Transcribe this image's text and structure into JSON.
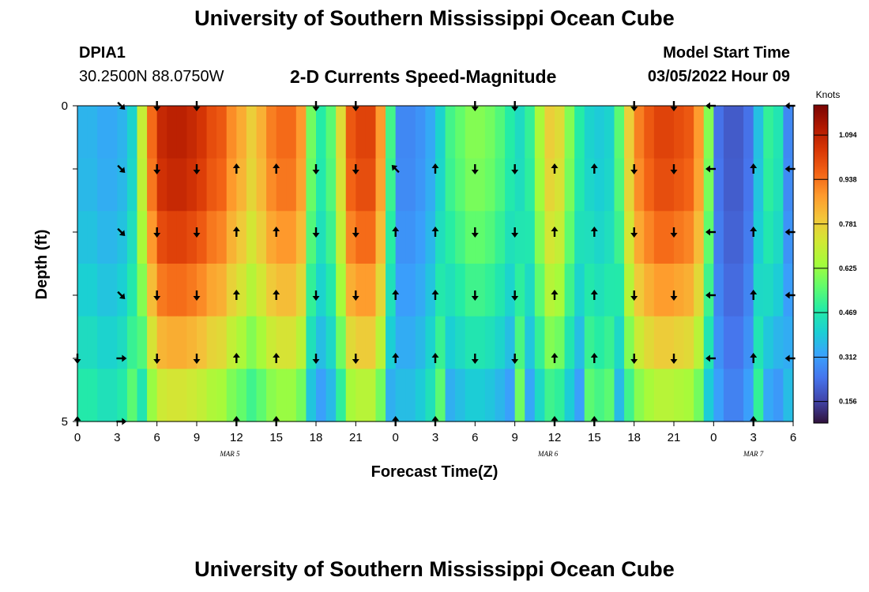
{
  "page": {
    "title_top": "University of Southern Mississippi Ocean Cube",
    "title_bottom": "University of Southern Mississippi Ocean Cube"
  },
  "header": {
    "station_id": "DPIA1",
    "station_coords": "30.2500N  88.0750W",
    "subtitle": "2-D Currents Speed-Magnitude",
    "model_label": "Model Start Time",
    "model_time": "03/05/2022 Hour 09"
  },
  "colors": {
    "ramp": [
      "#30123b",
      "#4145ab",
      "#4675ed",
      "#39a2fc",
      "#1bcfd4",
      "#24eca6",
      "#61fc6c",
      "#a4fc3b",
      "#d1e834",
      "#f3c63a",
      "#fe9b2d",
      "#f36315",
      "#d93806",
      "#b11901",
      "#7a0403"
    ],
    "arrow": "#000000",
    "frame": "#000000"
  },
  "chart_data": {
    "type": "heatmap",
    "title": "2-D Currents Speed-Magnitude",
    "xlabel": "Forecast Time(Z)",
    "ylabel": "Depth (ft)",
    "x_hours": [
      0,
      0.75,
      1.5,
      2.25,
      3,
      3.75,
      4.5,
      5.25,
      6,
      6.75,
      7.5,
      8.25,
      9,
      9.75,
      10.5,
      11.25,
      12,
      12.75,
      13.5,
      14.25,
      15,
      15.75,
      16.5,
      17.25,
      18,
      18.75,
      19.5,
      20.25,
      21,
      21.75,
      22.5,
      23.25,
      24,
      24.75,
      25.5,
      26.25,
      27,
      27.75,
      28.5,
      29.25,
      30,
      30.75,
      31.5,
      32.25,
      33,
      33.75,
      34.5,
      35.25,
      36,
      36.75,
      37.5,
      38.25,
      39,
      39.75,
      40.5,
      41.25,
      42,
      42.75,
      43.5,
      44.25,
      45,
      45.75,
      46.5,
      47.25,
      48,
      48.75,
      49.5,
      50.25,
      51,
      51.75,
      52.5,
      53.25
    ],
    "speed_knots": [
      0.36,
      0.36,
      0.34,
      0.34,
      0.36,
      0.42,
      0.7,
      0.95,
      1.08,
      1.1,
      1.1,
      1.08,
      1.05,
      1.0,
      0.98,
      0.9,
      0.85,
      0.78,
      0.84,
      0.92,
      0.95,
      0.95,
      0.88,
      0.58,
      0.48,
      0.55,
      0.75,
      0.98,
      1.02,
      1.02,
      0.88,
      0.52,
      0.28,
      0.28,
      0.3,
      0.34,
      0.42,
      0.52,
      0.56,
      0.6,
      0.6,
      0.58,
      0.54,
      0.48,
      0.44,
      0.5,
      0.65,
      0.78,
      0.75,
      0.6,
      0.48,
      0.42,
      0.4,
      0.42,
      0.55,
      0.78,
      0.92,
      0.98,
      1.02,
      1.02,
      1.0,
      0.98,
      0.88,
      0.6,
      0.24,
      0.2,
      0.2,
      0.24,
      0.38,
      0.5,
      0.46,
      0.28
    ],
    "depth_factor": [
      1.0,
      0.98,
      0.93,
      0.86,
      0.77,
      0.66
    ],
    "depth_range": [
      0,
      5
    ],
    "depth_ticks": [
      "0",
      "5"
    ],
    "x_ticks": [
      "0",
      "3",
      "6",
      "9",
      "12",
      "15",
      "18",
      "21",
      "0",
      "3",
      "6",
      "9",
      "12",
      "15",
      "18",
      "21",
      "0",
      "3",
      "6"
    ],
    "x_tick_hours": [
      0,
      3,
      6,
      9,
      12,
      15,
      18,
      21,
      24,
      27,
      30,
      33,
      36,
      39,
      42,
      45,
      48,
      51,
      54
    ],
    "x_range_hours": [
      0,
      54
    ],
    "date_labels": [
      {
        "text": "MAR 5",
        "hour": 11.5
      },
      {
        "text": "MAR 6",
        "hour": 35.5
      },
      {
        "text": "MAR 7",
        "hour": 51
      }
    ],
    "arrow_levels": [
      0,
      1,
      2,
      3,
      4,
      5
    ],
    "arrows": [
      {
        "hour": 0,
        "dir": [
          "",
          "",
          "",
          "",
          "S",
          "N"
        ]
      },
      {
        "hour": 3.3,
        "dir": [
          "SE",
          "SE",
          "SE",
          "SE",
          "E",
          "E"
        ]
      },
      {
        "hour": 6,
        "dir": [
          "S",
          "S",
          "S",
          "S",
          "S",
          ""
        ]
      },
      {
        "hour": 9,
        "dir": [
          "S",
          "S",
          "S",
          "S",
          "S",
          ""
        ]
      },
      {
        "hour": 12,
        "dir": [
          "",
          "N",
          "N",
          "N",
          "N",
          "N"
        ]
      },
      {
        "hour": 15,
        "dir": [
          "",
          "N",
          "N",
          "N",
          "N",
          "N"
        ]
      },
      {
        "hour": 18,
        "dir": [
          "S",
          "S",
          "S",
          "S",
          "S",
          ""
        ]
      },
      {
        "hour": 21,
        "dir": [
          "S",
          "S",
          "S",
          "S",
          "S",
          ""
        ]
      },
      {
        "hour": 24,
        "dir": [
          "",
          "NW",
          "N",
          "N",
          "N",
          "N"
        ]
      },
      {
        "hour": 27,
        "dir": [
          "",
          "N",
          "N",
          "N",
          "N",
          "N"
        ]
      },
      {
        "hour": 30,
        "dir": [
          "S",
          "S",
          "S",
          "S",
          "S",
          ""
        ]
      },
      {
        "hour": 33,
        "dir": [
          "S",
          "S",
          "S",
          "S",
          "S",
          ""
        ]
      },
      {
        "hour": 36,
        "dir": [
          "",
          "N",
          "N",
          "N",
          "N",
          "N"
        ]
      },
      {
        "hour": 39,
        "dir": [
          "",
          "N",
          "N",
          "N",
          "N",
          "N"
        ]
      },
      {
        "hour": 42,
        "dir": [
          "S",
          "S",
          "S",
          "S",
          "S",
          ""
        ]
      },
      {
        "hour": 45,
        "dir": [
          "S",
          "S",
          "S",
          "S",
          "S",
          ""
        ]
      },
      {
        "hour": 47.8,
        "dir": [
          "W",
          "W",
          "W",
          "W",
          "W",
          ""
        ]
      },
      {
        "hour": 51,
        "dir": [
          "",
          "N",
          "N",
          "N",
          "N",
          "N"
        ]
      },
      {
        "hour": 53.8,
        "dir": [
          "W",
          "W",
          "W",
          "W",
          "W",
          ""
        ]
      }
    ],
    "colorbar": {
      "unit": "Knots",
      "range": [
        0.08,
        1.2
      ],
      "ticks": [
        {
          "value": 0.156,
          "label": "0.156"
        },
        {
          "value": 0.312,
          "label": "0.312"
        },
        {
          "value": 0.469,
          "label": "0.469"
        },
        {
          "value": 0.625,
          "label": "0.625"
        },
        {
          "value": 0.781,
          "label": "0.781"
        },
        {
          "value": 0.938,
          "label": "0.938"
        },
        {
          "value": 1.094,
          "label": "1.094"
        }
      ]
    }
  }
}
